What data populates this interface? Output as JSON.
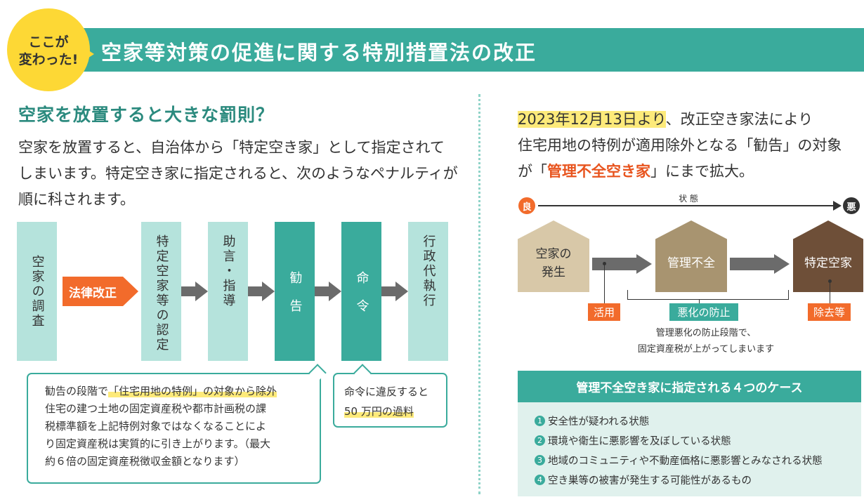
{
  "header": {
    "badge_line1": "ここが",
    "badge_line2": "変わった!",
    "title": "空家等対策の促進に関する特別措置法の改正"
  },
  "left": {
    "heading": "空家を放置すると大きな罰則？",
    "intro": "空家を放置すると、自治体から「特定空き家」として指定されてしまいます。特定空き家に指定されると、次のようなペナルティが順に科されます。",
    "law_change": "法律改正",
    "flow": [
      "空家の調査",
      "特定空家等の認定",
      "助言・指導",
      "勧告",
      "命令",
      "行政代執行"
    ],
    "callout1": {
      "line1_pre": "勧告の段階で",
      "line1_hl": "「住宅用地の特例」",
      "line1_post": "の対象から除外",
      "line2": "住宅の建つ土地の固定資産税や都市計画税の課",
      "line3": "税標準額を上記特例対象ではなくなることによ",
      "line4": "り固定資産税は実質的に引き上がります。（最大",
      "line5": "約６倍の固定資産税徴収金額となります）"
    },
    "callout2": {
      "line1": "命令に違反すると",
      "line2": "50 万円の過料"
    }
  },
  "right": {
    "intro_date": "2023年12月13日より",
    "intro_l1_rest": "、改正空き家法により",
    "intro_l2": "住宅用地の特例が適用除外となる「勧告」の対象",
    "intro_l3_pre": "が「",
    "intro_l3_hl": "管理不全空き家",
    "intro_l3_post": "」にまで拡大。",
    "scale_good": "良",
    "scale_label": "状 態",
    "scale_bad": "悪",
    "house1_l1": "空家の",
    "house1_l2": "発生",
    "house2": "管理不全",
    "house3": "特定空家",
    "tag_use": "活用",
    "tag_prevent": "悪化の防止",
    "tag_remove": "除去等",
    "note_l1": "管理悪化の防止段階で、",
    "note_l2": "固定資産税が上がってしまいます",
    "cases_title": "管理不全空き家に指定される４つのケース",
    "cases": [
      {
        "num": "1",
        "text": "安全性が疑われる状態"
      },
      {
        "num": "2",
        "text": "環境や衛生に悪影響を及ぼしている状態"
      },
      {
        "num": "3",
        "text": "地域のコミュニティや不動産価格に悪影響とみなされる状態"
      },
      {
        "num": "4",
        "text": "空き巣等の被害が発生する可能性があるもの"
      }
    ]
  },
  "colors": {
    "teal": "#3aab9c",
    "light_teal": "#b5e3dc",
    "orange": "#f26b2b",
    "yellow": "#fdd835",
    "dark_brown": "#6e4f38"
  }
}
